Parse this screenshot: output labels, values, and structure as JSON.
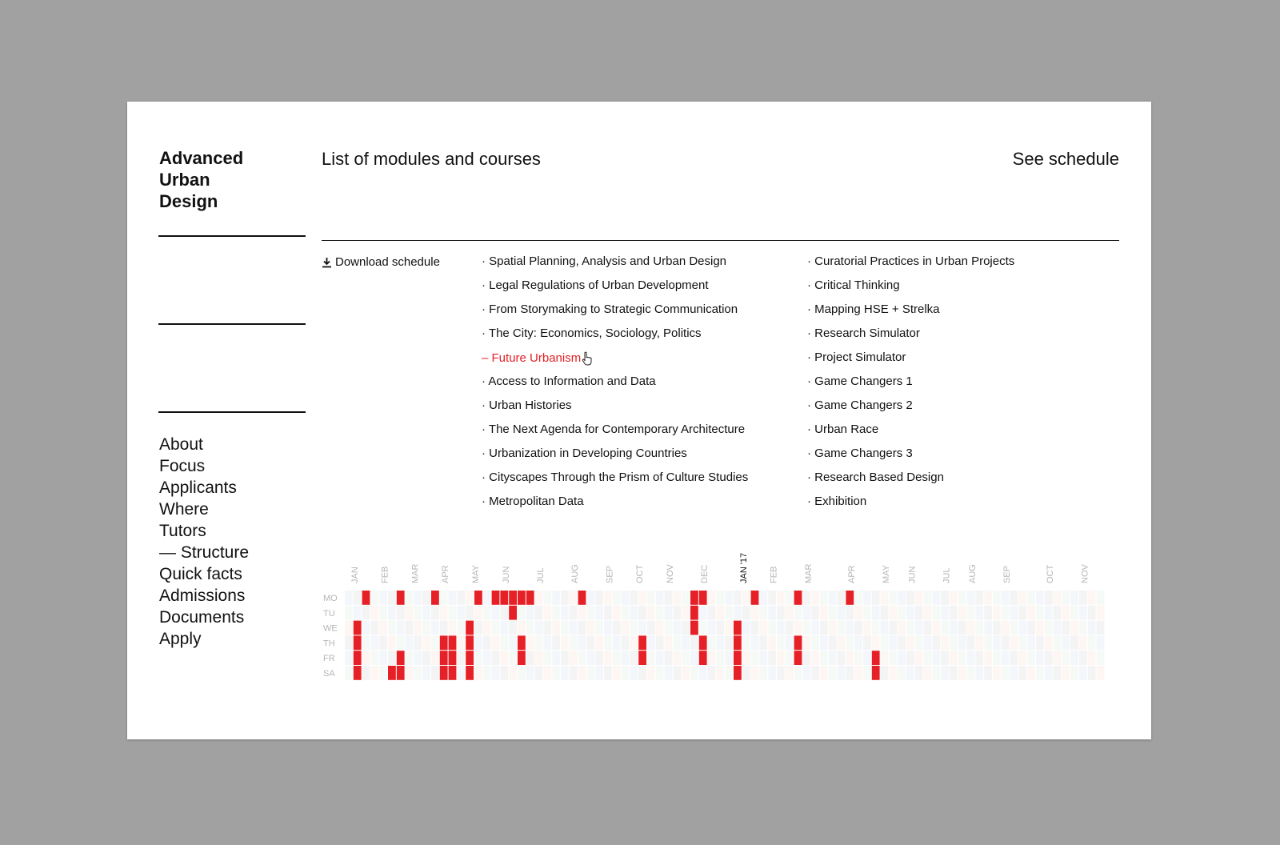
{
  "brand": [
    "Advanced",
    "Urban",
    "Design"
  ],
  "header": {
    "list_title": "List of modules and courses",
    "see_schedule": "See schedule"
  },
  "download": {
    "label": "Download schedule",
    "icon": "download-icon"
  },
  "modules": {
    "column1": [
      {
        "prefix": "· ",
        "label": "Spatial Planning, Analysis and Urban Design",
        "active": false
      },
      {
        "prefix": "· ",
        "label": "Legal Regulations of Urban Development",
        "active": false
      },
      {
        "prefix": "· ",
        "label": "From Storymaking to Strategic Communication",
        "active": false
      },
      {
        "prefix": "· ",
        "label": "The City: Economics, Sociology, Politics",
        "active": false
      },
      {
        "prefix": "– ",
        "label": "Future Urbanism",
        "active": true
      },
      {
        "prefix": "· ",
        "label": "Access to Information and Data",
        "active": false
      },
      {
        "prefix": "· ",
        "label": "Urban Histories",
        "active": false
      },
      {
        "prefix": "· ",
        "label": "The Next Agenda for Contemporary Architecture",
        "active": false
      },
      {
        "prefix": "· ",
        "label": "Urbanization in Developing Countries",
        "active": false
      },
      {
        "prefix": "· ",
        "label": "Cityscapes Through the Prism of Culture Studies",
        "active": false
      },
      {
        "prefix": "· ",
        "label": "Metropolitan Data",
        "active": false
      }
    ],
    "column2": [
      {
        "prefix": "· ",
        "label": "Curatorial Practices in Urban Projects",
        "active": false
      },
      {
        "prefix": "· ",
        "label": "Critical Thinking",
        "active": false
      },
      {
        "prefix": "· ",
        "label": "Mapping HSE + Strelka",
        "active": false
      },
      {
        "prefix": "· ",
        "label": "Research Simulator",
        "active": false
      },
      {
        "prefix": "· ",
        "label": "Project Simulator",
        "active": false
      },
      {
        "prefix": "· ",
        "label": "Game Changers 1",
        "active": false
      },
      {
        "prefix": "· ",
        "label": "Game Changers 2",
        "active": false
      },
      {
        "prefix": "· ",
        "label": "Urban Race",
        "active": false
      },
      {
        "prefix": "· ",
        "label": "Game Changers 3",
        "active": false
      },
      {
        "prefix": "· ",
        "label": "Research Based Design",
        "active": false
      },
      {
        "prefix": "· ",
        "label": "Exhibition",
        "active": false
      }
    ]
  },
  "nav": [
    {
      "label": "About",
      "active": false
    },
    {
      "label": "Focus",
      "active": false
    },
    {
      "label": "Applicants",
      "active": false
    },
    {
      "label": "Where",
      "active": false
    },
    {
      "label": "Tutors",
      "active": false
    },
    {
      "label": "— Structure",
      "active": true
    },
    {
      "label": "Quick facts",
      "active": false
    },
    {
      "label": "Admissions",
      "active": false
    },
    {
      "label": "Documents",
      "active": false
    },
    {
      "label": "Apply",
      "active": false
    }
  ],
  "schedule": {
    "days": [
      "MO",
      "TU",
      "WE",
      "TH",
      "FR",
      "SA"
    ],
    "week_count": 88,
    "months": [
      {
        "label": "JAN",
        "week": 1
      },
      {
        "label": "FEB",
        "week": 4.5
      },
      {
        "label": "MAR",
        "week": 8
      },
      {
        "label": "APR",
        "week": 11.5
      },
      {
        "label": "MAY",
        "week": 15
      },
      {
        "label": "JUN",
        "week": 18.5
      },
      {
        "label": "JUL",
        "week": 22.5
      },
      {
        "label": "AUG",
        "week": 26.5
      },
      {
        "label": "SEP",
        "week": 30.5
      },
      {
        "label": "OCT",
        "week": 34
      },
      {
        "label": "NOV",
        "week": 37.5
      },
      {
        "label": "DEC",
        "week": 41.5
      },
      {
        "label": "JAN '17",
        "week": 46,
        "highlight": true
      },
      {
        "label": "FEB",
        "week": 49.5
      },
      {
        "label": "MAR",
        "week": 53.5
      },
      {
        "label": "APR",
        "week": 58.5
      },
      {
        "label": "MAY",
        "week": 62.5
      },
      {
        "label": "JUN",
        "week": 65.5
      },
      {
        "label": "JUL",
        "week": 69.5
      },
      {
        "label": "AUG",
        "week": 72.5
      },
      {
        "label": "SEP",
        "week": 76.5
      },
      {
        "label": "OCT",
        "week": 81.5
      },
      {
        "label": "NOV",
        "week": 85.5
      }
    ],
    "active_by_week": [
      [],
      [
        2,
        3,
        4,
        5
      ],
      [
        0
      ],
      [],
      [],
      [
        5
      ],
      [
        0,
        4,
        5
      ],
      [],
      [],
      [],
      [
        0
      ],
      [
        3,
        4,
        5
      ],
      [
        3,
        4,
        5
      ],
      [],
      [
        2,
        3,
        4,
        5
      ],
      [
        0
      ],
      [],
      [
        0
      ],
      [
        0
      ],
      [
        0,
        1
      ],
      [
        0,
        3,
        4
      ],
      [
        0
      ],
      [],
      [],
      [],
      [],
      [],
      [
        0
      ],
      [],
      [],
      [],
      [],
      [],
      [],
      [
        3,
        4
      ],
      [],
      [],
      [],
      [],
      [],
      [
        0,
        1,
        2
      ],
      [
        0,
        3,
        4
      ],
      [],
      [],
      [],
      [
        2,
        3,
        4,
        5
      ],
      [],
      [
        0
      ],
      [],
      [],
      [],
      [],
      [
        0,
        3,
        4
      ],
      [],
      [],
      [],
      [],
      [],
      [
        0
      ],
      [],
      [],
      [
        4,
        5
      ],
      [],
      [],
      [],
      [],
      [],
      [],
      [],
      [],
      [],
      [],
      [],
      [],
      [],
      [],
      [],
      [],
      [],
      [],
      [],
      [],
      [],
      [],
      [],
      [],
      [],
      [],
      [],
      [],
      []
    ]
  }
}
